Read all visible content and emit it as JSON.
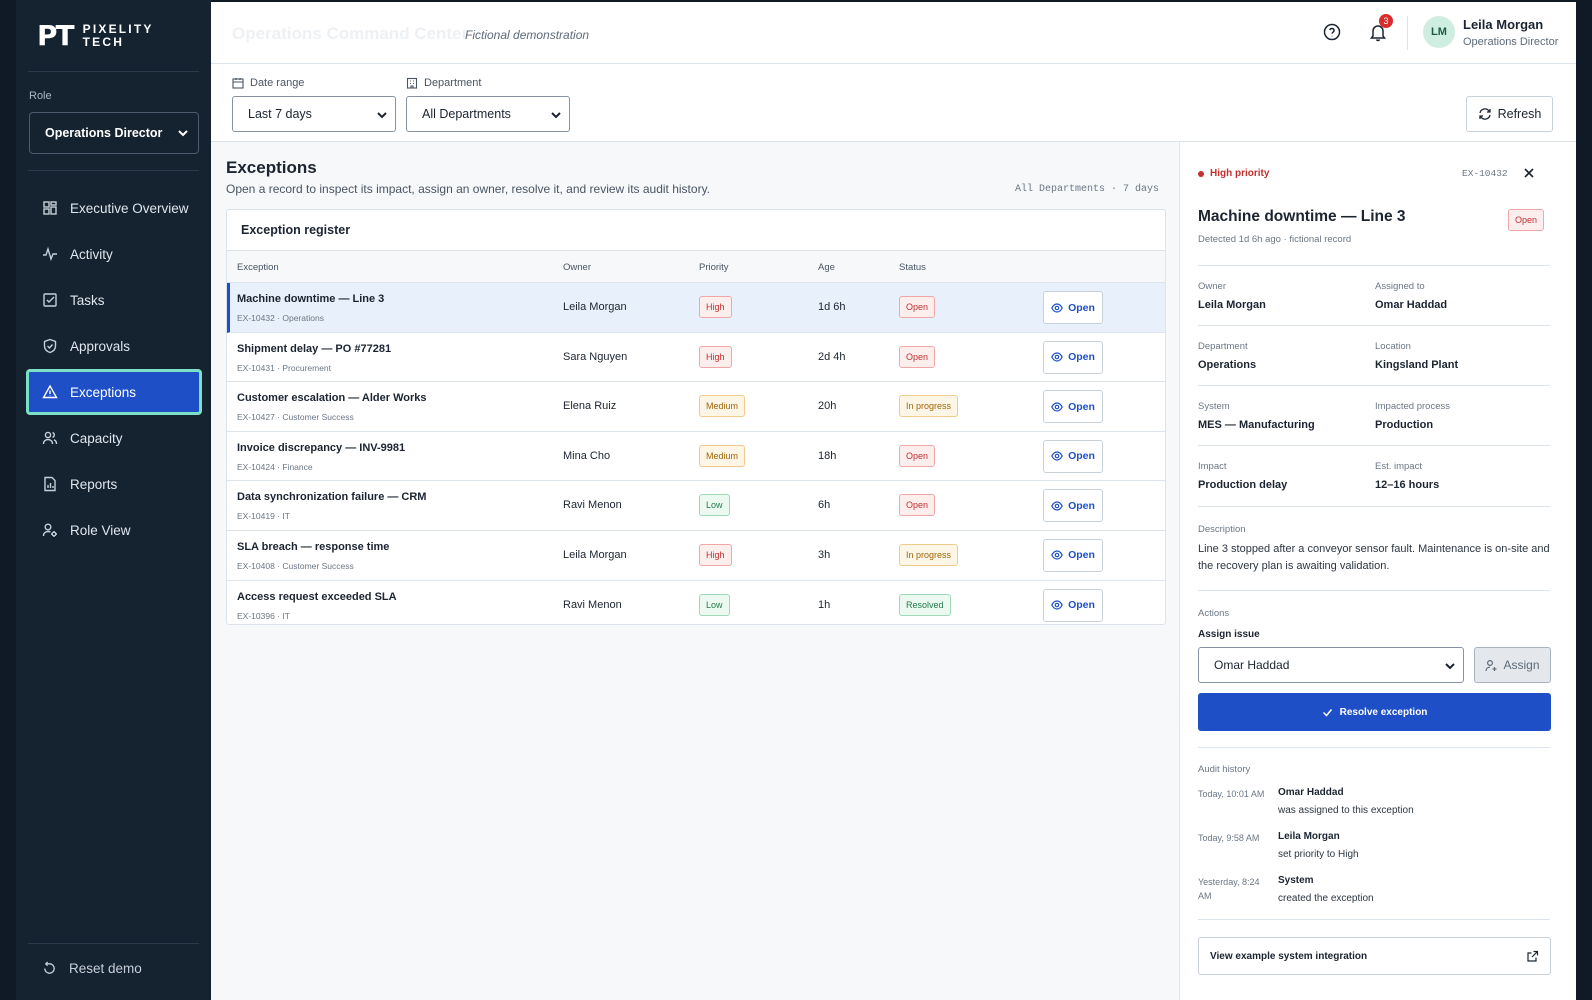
{
  "brand": {
    "mark": "PT",
    "name_line1": "PIXELITY",
    "name_line2": "TECH"
  },
  "sidebar": {
    "role_label": "Role",
    "role_value": "Operations Director",
    "items": [
      {
        "label": "Executive Overview",
        "icon": "grid-icon"
      },
      {
        "label": "Activity",
        "icon": "activity-icon"
      },
      {
        "label": "Tasks",
        "icon": "checkbox-icon"
      },
      {
        "label": "Approvals",
        "icon": "shield-check-icon"
      },
      {
        "label": "Exceptions",
        "icon": "warning-icon",
        "active": true
      },
      {
        "label": "Capacity",
        "icon": "users-icon"
      },
      {
        "label": "Reports",
        "icon": "report-icon"
      },
      {
        "label": "Role View",
        "icon": "user-gear-icon"
      }
    ],
    "reset_label": "Reset demo"
  },
  "header": {
    "title": "Operations Command Center",
    "subtitle": "Fictional demonstration",
    "notification_count": "3",
    "user_initials": "LM",
    "user_name": "Leila Morgan",
    "user_role": "Operations Director"
  },
  "filters": {
    "date_label": "Date range",
    "date_value": "Last 7 days",
    "dept_label": "Department",
    "dept_value": "All Departments",
    "refresh_label": "Refresh"
  },
  "exceptions": {
    "title": "Exceptions",
    "description": "Open a record to inspect its impact, assign an owner, resolve it, and review its audit history.",
    "meta": "All Departments · 7 days",
    "card_title": "Exception register",
    "columns": {
      "exception": "Exception",
      "owner": "Owner",
      "priority": "Priority",
      "age": "Age",
      "status": "Status"
    },
    "open_label": "Open",
    "rows": [
      {
        "name": "Machine downtime — Line 3",
        "id": "EX-10432 · Operations",
        "owner": "Leila Morgan",
        "priority": "High",
        "age": "1d 6h",
        "status": "Open"
      },
      {
        "name": "Shipment delay — PO #77281",
        "id": "EX-10431 · Procurement",
        "owner": "Sara Nguyen",
        "priority": "High",
        "age": "2d 4h",
        "status": "Open"
      },
      {
        "name": "Customer escalation — Alder Works",
        "id": "EX-10427 · Customer Success",
        "owner": "Elena Ruiz",
        "priority": "Medium",
        "age": "20h",
        "status": "In progress"
      },
      {
        "name": "Invoice discrepancy — INV-9981",
        "id": "EX-10424 · Finance",
        "owner": "Mina Cho",
        "priority": "Medium",
        "age": "18h",
        "status": "Open"
      },
      {
        "name": "Data synchronization failure — CRM",
        "id": "EX-10419 · IT",
        "owner": "Ravi Menon",
        "priority": "Low",
        "age": "6h",
        "status": "Open"
      },
      {
        "name": "SLA breach — response time",
        "id": "EX-10408 · Customer Success",
        "owner": "Leila Morgan",
        "priority": "High",
        "age": "3h",
        "status": "In progress"
      },
      {
        "name": "Access request exceeded SLA",
        "id": "EX-10396 · IT",
        "owner": "Ravi Menon",
        "priority": "Low",
        "age": "1h",
        "status": "Resolved"
      }
    ]
  },
  "detail": {
    "priority_label": "High priority",
    "id": "EX-10432",
    "title": "Machine downtime — Line 3",
    "status": "Open",
    "detected": "Detected 1d 6h ago · fictional record",
    "fields": {
      "owner_k": "Owner",
      "owner_v": "Leila Morgan",
      "assigned_k": "Assigned to",
      "assigned_v": "Omar Haddad",
      "dept_k": "Department",
      "dept_v": "Operations",
      "location_k": "Location",
      "location_v": "Kingsland Plant",
      "system_k": "System",
      "system_v": "MES — Manufacturing",
      "process_k": "Impacted process",
      "process_v": "Production",
      "impact_k": "Impact",
      "impact_v": "Production delay",
      "est_k": "Est. impact",
      "est_v": "12–16 hours"
    },
    "description_label": "Description",
    "description": "Line 3 stopped after a conveyor sensor fault. Maintenance is on-site and the recovery plan is awaiting validation.",
    "actions_label": "Actions",
    "assign_label": "Assign issue",
    "assign_value": "Omar Haddad",
    "assign_button": "Assign",
    "resolve_button": "Resolve exception",
    "audit_label": "Audit history",
    "audit": [
      {
        "time": "Today, 10:01 AM",
        "who": "Omar Haddad",
        "what": "was assigned to this exception"
      },
      {
        "time": "Today, 9:58 AM",
        "who": "Leila Morgan",
        "what": "set priority to High"
      },
      {
        "time": "Yesterday, 8:24 AM",
        "who": "System",
        "what": "created the exception"
      }
    ],
    "integration_link": "View example system integration"
  },
  "colors": {
    "accent": "#1f4fc7",
    "sidebar": "#15222f",
    "active_outline": "#7ce0c8",
    "danger": "#c42f2f"
  }
}
